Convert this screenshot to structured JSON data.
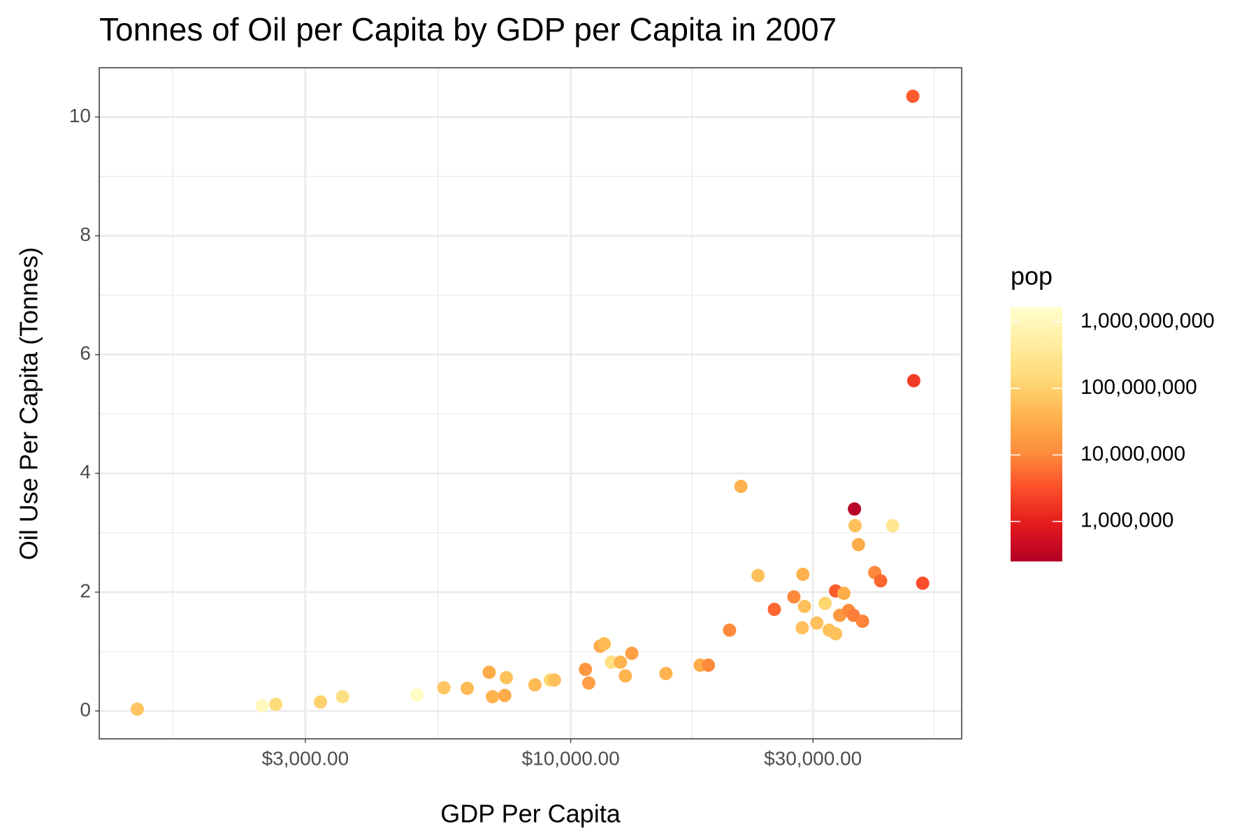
{
  "chart_data": {
    "type": "scatter",
    "title": "Tonnes of Oil per Capita by GDP per Capita in 2007",
    "x_label": "GDP Per Capita",
    "y_label": "Oil Use Per Capita (Tonnes)",
    "x": [
      1400,
      2466,
      2624,
      3213,
      3553,
      4977,
      5625,
      6253,
      6906,
      7012,
      7413,
      7466,
      8499,
      9116,
      9286,
      10690,
      10850,
      11430,
      11640,
      12030,
      12530,
      12810,
      13190,
      15400,
      17990,
      18670,
      20550,
      21640,
      23390,
      25180,
      27520,
      28570,
      28660,
      28870,
      30540,
      31700,
      32290,
      33250,
      33250,
      33880,
      34510,
      35270,
      36060,
      36220,
      36320,
      36880,
      37570,
      39700,
      40780,
      43060,
      47200,
      47400,
      49350
    ],
    "y": [
      0.03,
      0.09,
      0.11,
      0.15,
      0.24,
      0.27,
      0.39,
      0.38,
      0.65,
      0.24,
      0.26,
      0.56,
      0.44,
      0.52,
      0.52,
      0.7,
      0.47,
      1.09,
      1.13,
      0.82,
      0.82,
      0.59,
      0.97,
      0.63,
      0.77,
      0.77,
      1.36,
      3.78,
      2.28,
      1.71,
      1.92,
      1.4,
      2.3,
      1.76,
      1.48,
      1.81,
      1.36,
      2.02,
      1.3,
      1.61,
      1.98,
      1.69,
      1.61,
      3.4,
      3.12,
      2.8,
      1.51,
      2.33,
      2.19,
      3.12,
      10.35,
      5.56,
      2.15
    ],
    "pop": [
      70000000,
      1100000000,
      150000000,
      100000000,
      200000000,
      1300000000,
      70000000,
      50000000,
      30000000,
      40000000,
      30000000,
      60000000,
      50000000,
      120000000,
      60000000,
      15000000,
      20000000,
      30000000,
      50000000,
      190000000,
      40000000,
      40000000,
      20000000,
      40000000,
      30000000,
      10000000,
      10000000,
      40000000,
      60000000,
      5000000,
      10000000,
      60000000,
      40000000,
      60000000,
      60000000,
      120000000,
      60000000,
      4000000,
      60000000,
      16000000,
      30000000,
      10000000,
      8000000,
      300000,
      60000000,
      30000000,
      9000000,
      10000000,
      5000000,
      300000000,
      4000000,
      2000000,
      3000000
    ],
    "xlog": true,
    "xlim": [
      1178,
      58900
    ],
    "ylim": [
      -0.47,
      10.83
    ],
    "xticks": [
      {
        "value": 3000,
        "label": "$3,000.00"
      },
      {
        "value": 10000,
        "label": "$10,000.00"
      },
      {
        "value": 30000,
        "label": "$30,000.00"
      }
    ],
    "yticks": [
      0,
      2,
      4,
      6,
      8,
      10
    ],
    "grid": true,
    "color_scale": {
      "title": "pop",
      "log": true,
      "limits": [
        250000,
        1660000000
      ],
      "colors": [
        "#b10026",
        "#e31a1c",
        "#fc4e2a",
        "#fd8d3c",
        "#feb24c",
        "#fed976",
        "#ffeda0",
        "#ffffcc"
      ],
      "ticks": [
        {
          "value": 1000000,
          "label": "1,000,000"
        },
        {
          "value": 10000000,
          "label": "10,000,000"
        },
        {
          "value": 100000000,
          "label": "100,000,000"
        },
        {
          "value": 1000000000,
          "label": "1,000,000,000"
        }
      ]
    }
  }
}
